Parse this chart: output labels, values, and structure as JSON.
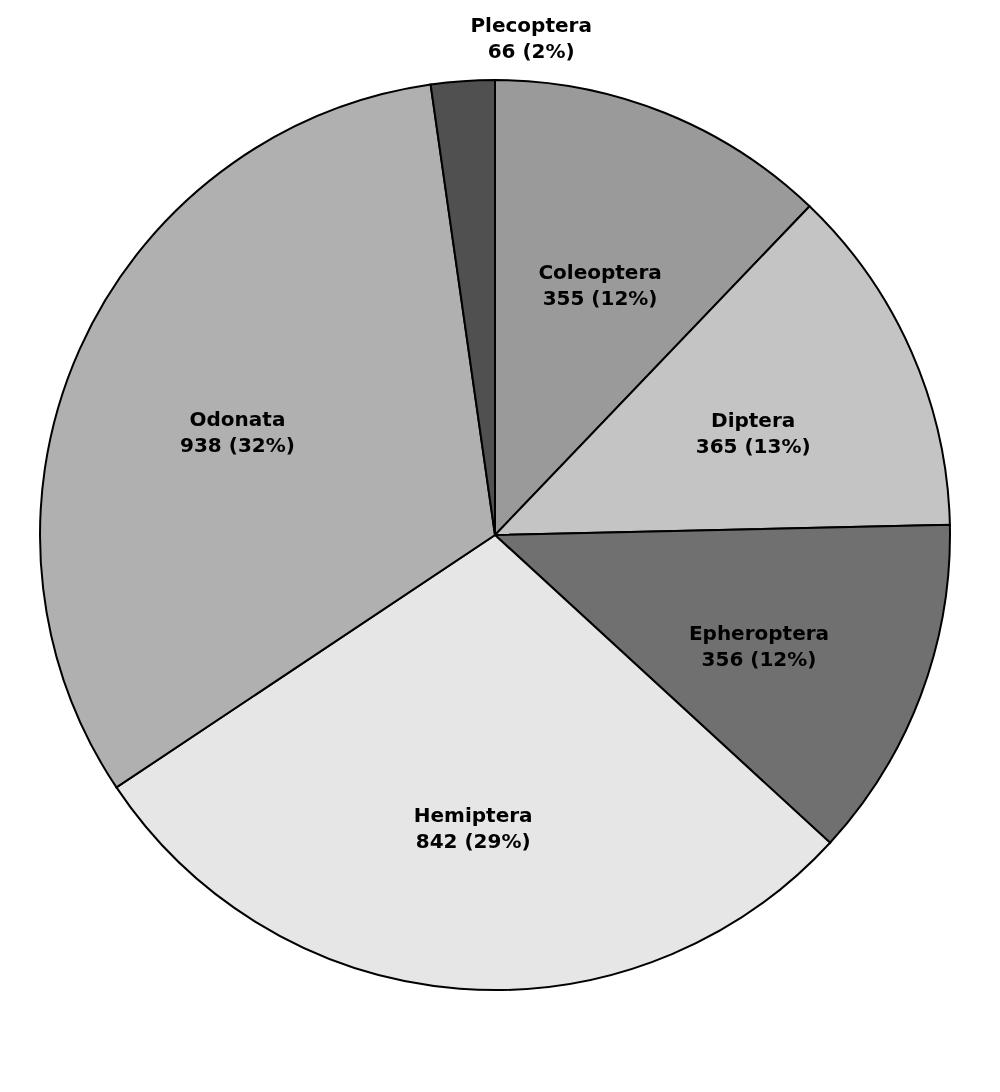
{
  "chart_data": {
    "type": "pie",
    "categories": [
      "Coleoptera",
      "Diptera",
      "Epheroptera",
      "Hemiptera",
      "Odonata",
      "Plecoptera"
    ],
    "values": [
      355,
      365,
      356,
      842,
      938,
      66
    ],
    "colors": [
      "#9a9a9a",
      "#c4c4c4",
      "#707070",
      "#e6e6e6",
      "#b0b0b0",
      "#505050"
    ],
    "value_labels": [
      "355 (12%)",
      "365 (13%)",
      "356 (12%)",
      "842 (29%)",
      "938 (32%)",
      "66 (2%)"
    ],
    "legend": false
  }
}
